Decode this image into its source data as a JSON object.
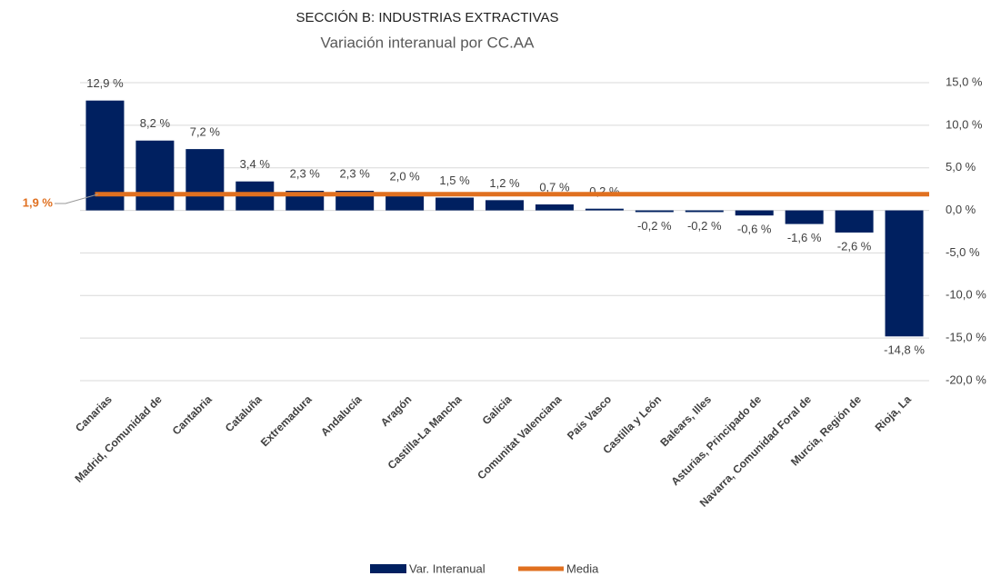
{
  "chart_data": {
    "type": "bar",
    "title": "SECCIÓN B: INDUSTRIAS EXTRACTIVAS",
    "subtitle": "Variación interanual por CC.AA",
    "categories": [
      "Canarias",
      "Madrid, Comunidad de",
      "Cantabria",
      "Cataluña",
      "Extremadura",
      "Andalucía",
      "Aragón",
      "Castilla-La Mancha",
      "Galicia",
      "Comunitat Valenciana",
      "País Vasco",
      "Castilla y León",
      "Balears, Illes",
      "Asturias, Principado de",
      "Navarra, Comunidad Foral de",
      "Murcia, Región de",
      "Rioja, La"
    ],
    "series": [
      {
        "name": "Var. Interanual",
        "color": "#002060",
        "values": [
          12.9,
          8.2,
          7.2,
          3.4,
          2.3,
          2.3,
          2.0,
          1.5,
          1.2,
          0.7,
          0.2,
          -0.2,
          -0.2,
          -0.6,
          -1.6,
          -2.6,
          -14.8
        ],
        "value_labels": [
          "12,9 %",
          "8,2 %",
          "7,2 %",
          "3,4 %",
          "2,3 %",
          "2,3 %",
          "2,0 %",
          "1,5 %",
          "1,2 %",
          "0,7 %",
          "0,2 %",
          "-0,2 %",
          "-0,2 %",
          "-0,6 %",
          "-1,6 %",
          "-2,6 %",
          "-14,8 %"
        ]
      }
    ],
    "mean": {
      "name": "Media",
      "color": "#e07020",
      "value": 1.9,
      "label": "1,9 %"
    },
    "ylim": [
      -20,
      15
    ],
    "yticks": [
      {
        "value": -20,
        "label": "-20,0 %"
      },
      {
        "value": -15,
        "label": "-15,0 %"
      },
      {
        "value": -10,
        "label": "-10,0 %"
      },
      {
        "value": -5,
        "label": "-5,0 %"
      },
      {
        "value": 0,
        "label": "0,0 %"
      },
      {
        "value": 5,
        "label": "5,0 %"
      },
      {
        "value": 10,
        "label": "10,0 %"
      },
      {
        "value": 15,
        "label": "15,0 %"
      }
    ],
    "grid": true
  }
}
